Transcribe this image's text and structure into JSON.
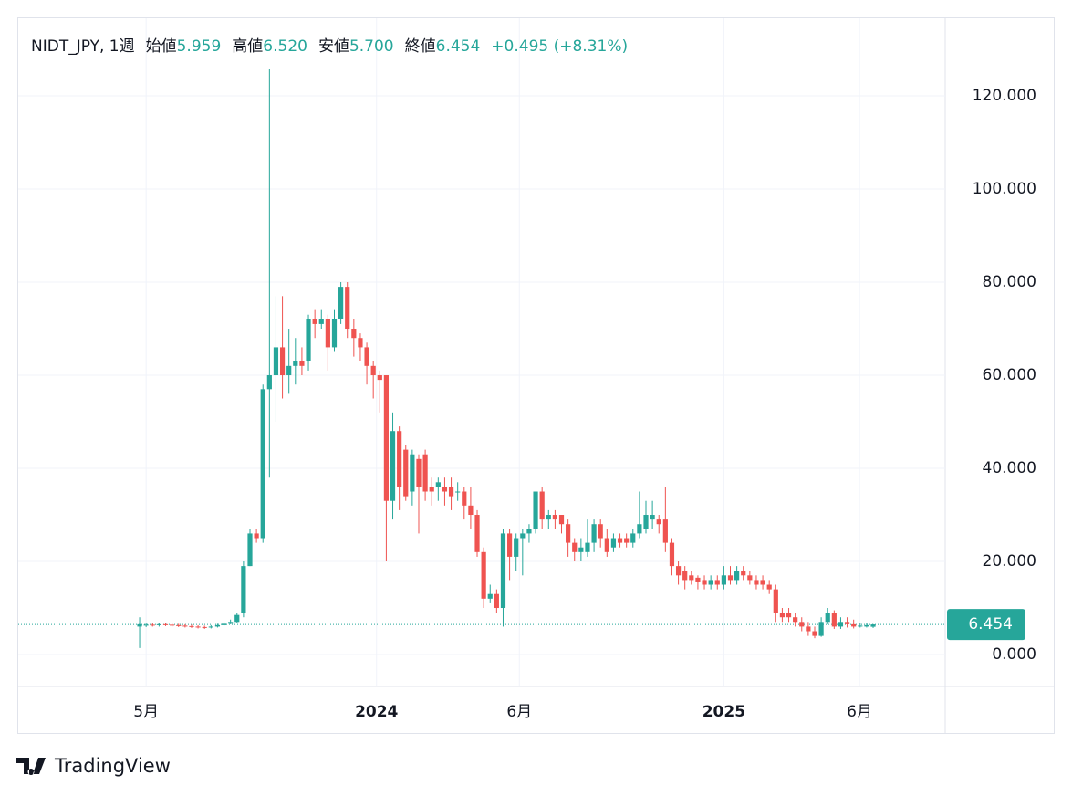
{
  "chart_data": {
    "type": "candlestick",
    "header": {
      "symbol": "NIDT_JPY, 1週",
      "fields": [
        {
          "label": "始値",
          "value": "5.959"
        },
        {
          "label": "高値",
          "value": "6.520"
        },
        {
          "label": "安値",
          "value": "5.700"
        },
        {
          "label": "終値",
          "value": "6.454"
        }
      ],
      "change": "+0.495 (+8.31%)"
    },
    "categories": [
      null,
      null,
      null,
      null,
      null,
      null,
      null,
      null,
      null,
      null,
      null,
      null,
      null,
      null,
      null,
      null,
      null,
      null,
      null,
      null,
      null,
      null,
      null,
      null,
      null,
      null,
      null,
      null,
      null,
      null,
      null,
      null,
      null,
      null,
      null,
      null,
      null,
      null,
      null,
      null,
      null,
      null,
      null,
      null,
      null,
      null,
      null,
      null,
      null,
      null,
      null,
      null,
      null,
      null,
      null,
      null,
      null,
      null,
      null,
      null,
      null,
      null,
      null,
      null,
      null,
      null,
      null,
      null,
      null,
      null,
      null,
      null,
      null,
      null,
      null,
      null,
      null,
      null,
      null,
      null,
      null,
      null,
      null,
      null,
      null,
      null,
      null,
      null,
      null,
      null,
      null,
      null,
      null,
      null,
      null,
      null,
      null,
      null,
      null,
      null,
      null,
      null,
      null,
      null,
      null,
      null,
      null,
      null,
      null,
      null,
      null,
      null,
      null,
      null
    ],
    "open": [
      6,
      6.3,
      6.4,
      6.3,
      6.5,
      6.4,
      6.3,
      6.2,
      6.1,
      6.0,
      5.9,
      5.8,
      6.0,
      6.3,
      6.6,
      7,
      9,
      19,
      26,
      25,
      57,
      60,
      66,
      60,
      62,
      63,
      63,
      72,
      71,
      72,
      66,
      72,
      79,
      70,
      68,
      66,
      62,
      60,
      60,
      33,
      48,
      44,
      35,
      42,
      43,
      36,
      36,
      36,
      36,
      35,
      35,
      32,
      30,
      22,
      12,
      13,
      10,
      26,
      21,
      25,
      26,
      27,
      35,
      29,
      30,
      30,
      28,
      24,
      22,
      22,
      24,
      28,
      25,
      23,
      25,
      25,
      24,
      26,
      27,
      29,
      29,
      29,
      24,
      19,
      18,
      17,
      16.5,
      16,
      15,
      16,
      15,
      17,
      16,
      18,
      17,
      16,
      16,
      15,
      14,
      9,
      9,
      8,
      7,
      6,
      5,
      4,
      7,
      9,
      6,
      7,
      6.5,
      6,
      6,
      5.959
    ],
    "high": [
      8,
      6.8,
      6.8,
      6.8,
      6.8,
      6.7,
      6.6,
      6.5,
      6.4,
      6.3,
      6.2,
      6.3,
      6.6,
      7,
      7.5,
      9,
      20,
      27,
      27,
      58,
      125.7,
      77,
      77,
      70,
      68,
      66,
      73,
      74,
      74,
      73,
      74,
      80,
      80,
      72,
      69,
      67,
      63,
      61,
      60,
      52,
      49,
      45,
      44,
      43,
      44,
      38,
      38,
      38,
      38,
      37,
      36,
      36,
      31,
      23,
      15,
      14,
      27,
      27,
      26,
      27,
      28,
      35,
      36,
      31,
      31,
      30,
      29,
      25,
      25,
      29,
      29,
      29,
      27,
      26,
      26,
      26,
      27,
      35,
      33,
      33,
      30,
      36,
      25,
      20,
      19,
      18,
      17,
      17,
      17,
      17,
      19,
      19,
      19,
      19,
      18,
      17,
      17,
      16,
      15,
      10,
      10,
      9,
      8,
      7,
      6,
      8,
      10,
      9.5,
      8,
      8,
      7.5,
      6.8,
      6.8,
      6.52
    ],
    "low": [
      1.4,
      5.9,
      6.0,
      6.0,
      6.1,
      6.0,
      5.9,
      5.8,
      5.7,
      5.6,
      5.5,
      5.6,
      5.8,
      6.1,
      6.5,
      6.8,
      8,
      19,
      24,
      24,
      38,
      50,
      55,
      56,
      58,
      60,
      61,
      68,
      70,
      61,
      65,
      71,
      68,
      64,
      63,
      58,
      55,
      52,
      20,
      29,
      31,
      33,
      32,
      26,
      33,
      32,
      33,
      32,
      31,
      33,
      29,
      27,
      21,
      10,
      11,
      9,
      6,
      16,
      18,
      17,
      24,
      26,
      27,
      27,
      27,
      26,
      21,
      20,
      20,
      21,
      22,
      23,
      21,
      22,
      23,
      23,
      23,
      25,
      26,
      27,
      26,
      22,
      17,
      15,
      14,
      15,
      14,
      14,
      14,
      14,
      14,
      15,
      15,
      16,
      15,
      14,
      14,
      13,
      7,
      7,
      7,
      6,
      5,
      4,
      3.5,
      3.8,
      6.5,
      5.5,
      5.5,
      5.8,
      5.6,
      5.8,
      5.8,
      5.7
    ],
    "close": [
      6.5,
      6.4,
      6.3,
      6.5,
      6.4,
      6.3,
      6.2,
      6.1,
      6.0,
      5.9,
      5.8,
      6.0,
      6.3,
      6.6,
      7,
      8.5,
      19,
      26,
      25,
      57,
      60,
      66,
      60,
      62,
      63,
      62,
      72,
      71,
      72,
      66,
      72,
      79,
      70,
      68,
      66,
      62,
      60,
      59,
      33,
      48,
      36,
      34,
      43,
      36,
      35,
      35,
      37,
      35,
      34,
      35,
      32,
      30,
      22,
      12,
      13,
      10,
      26,
      21,
      25,
      26,
      27,
      35,
      29,
      30,
      29,
      28,
      24,
      22,
      23,
      24,
      28,
      25,
      22,
      25,
      24,
      24,
      26,
      28,
      30,
      30,
      28,
      24,
      19,
      17,
      16,
      16,
      15.5,
      15,
      16,
      15,
      17,
      16,
      18,
      17,
      16,
      15,
      15,
      14,
      9,
      8,
      8,
      7,
      6,
      5,
      4,
      7,
      9,
      6,
      7,
      6.5,
      6,
      6.2,
      6.3,
      6.454
    ],
    "up_color": "#26a69a",
    "down_color": "#ef5350",
    "xlim": [
      -18.7,
      124.1
    ],
    "xticks": [
      {
        "value": 1.0,
        "label": "5月"
      },
      {
        "value": 36.5,
        "label": "2024"
      },
      {
        "value": 58.5,
        "label": "6月"
      },
      {
        "value": 90.0,
        "label": "2025"
      },
      {
        "value": 110.9,
        "label": "6月"
      }
    ],
    "ylim": [
      -6.86,
      136.67
    ],
    "yticks": [
      {
        "value": 0,
        "label": "0.000"
      },
      {
        "value": 20,
        "label": "20.000"
      },
      {
        "value": 40,
        "label": "40.000"
      },
      {
        "value": 60,
        "label": "60.000"
      },
      {
        "value": 80,
        "label": "80.000"
      },
      {
        "value": 100,
        "label": "100.000"
      },
      {
        "value": 120,
        "label": "120.000"
      }
    ],
    "grid": true,
    "last_price": {
      "value": 6.454,
      "label": "6.454"
    },
    "brand": "TradingView"
  }
}
